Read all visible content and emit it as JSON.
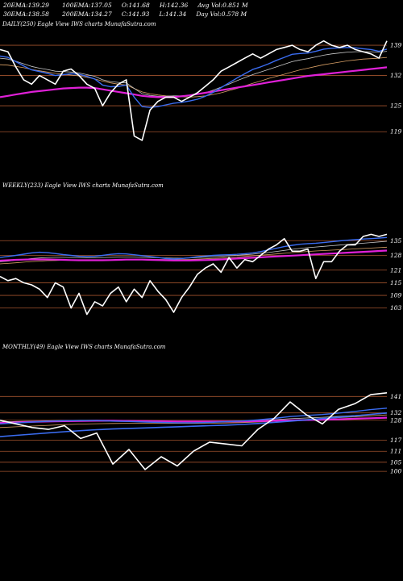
{
  "header": {
    "row1": [
      {
        "label": "20EMA:",
        "value": "139.29"
      },
      {
        "label": "100EMA:",
        "value": "137.05"
      },
      {
        "label": "O:",
        "value": "141.68"
      },
      {
        "label": "H:",
        "value": "142.36"
      },
      {
        "label": "Avg Vol:",
        "value": "0.851 M"
      }
    ],
    "row2": [
      {
        "label": "30EMA:",
        "value": "138.58"
      },
      {
        "label": "200EMA:",
        "value": "134.27"
      },
      {
        "label": "C:",
        "value": "141.93"
      },
      {
        "label": "L:",
        "value": "141.34"
      },
      {
        "label": "Day Vol:",
        "value": "0.578 M"
      }
    ]
  },
  "colors": {
    "price": "#ffffff",
    "grid": "#a0522d",
    "ema_fast": "#3a6cf0",
    "ema_slow": "#e020d8",
    "ema_mid": "#c8c8c8",
    "ema_other": "#d9a066"
  },
  "chart_data": [
    {
      "type": "line",
      "panel": "daily",
      "label": "DAILY(250) Eagle  View  IWS charts MunafaSutra.com",
      "yticks": [
        139,
        132,
        125,
        119
      ],
      "ylim": [
        114,
        142
      ],
      "x": [
        0,
        5,
        10,
        15,
        20,
        25,
        30,
        35,
        40,
        45,
        50,
        55,
        60,
        65,
        70,
        75,
        80,
        85,
        90,
        95,
        100,
        105,
        110,
        115,
        120,
        125,
        130,
        135,
        140,
        145,
        150,
        155,
        160,
        165,
        170,
        175,
        180,
        185,
        190,
        195,
        200,
        205,
        210,
        215,
        220,
        225,
        230,
        235,
        240,
        245
      ],
      "series": [
        {
          "role": "price",
          "values": [
            138,
            137.5,
            134,
            131,
            130,
            132,
            131,
            130,
            133,
            133.5,
            132,
            130,
            129,
            125,
            128,
            130,
            131,
            118,
            117,
            124,
            126,
            127,
            127,
            126,
            127,
            128,
            129.5,
            131,
            133,
            134,
            135,
            136,
            137,
            136,
            137,
            138,
            138.5,
            139,
            138,
            137.5,
            139,
            140,
            139,
            138.5,
            139,
            138,
            137.5,
            137,
            136,
            140
          ]
        },
        {
          "role": "ema_fast",
          "values": [
            136.5,
            136.2,
            135.2,
            134.2,
            133.3,
            132.9,
            132.5,
            132,
            132.2,
            132.4,
            132.3,
            131.8,
            131.2,
            129.8,
            129.4,
            129.5,
            129.8,
            127,
            124.8,
            124.6,
            124.8,
            125.2,
            125.6,
            125.8,
            126.1,
            126.5,
            127.2,
            128.1,
            129.2,
            130.3,
            131.4,
            132.4,
            133.4,
            134,
            134.7,
            135.5,
            136.2,
            136.9,
            137.1,
            137.2,
            137.6,
            138.1,
            138.3,
            138.4,
            138.5,
            138.4,
            138.2,
            138,
            137.6,
            138.1
          ]
        },
        {
          "role": "ema_mid",
          "values": [
            136,
            135.8,
            135.3,
            134.7,
            134.1,
            133.7,
            133.4,
            133,
            132.9,
            132.8,
            132.6,
            132.2,
            131.8,
            131,
            130.6,
            130.4,
            130.3,
            129,
            127.8,
            127.4,
            127.2,
            127.2,
            127.3,
            127.3,
            127.4,
            127.6,
            128,
            128.6,
            129.3,
            130,
            130.8,
            131.5,
            132.2,
            132.8,
            133.4,
            134,
            134.6,
            135.2,
            135.6,
            135.9,
            136.3,
            136.7,
            137,
            137.2,
            137.4,
            137.5,
            137.5,
            137.5,
            137.4,
            137.6
          ]
        },
        {
          "role": "ema_other",
          "values": [
            134.5,
            134.4,
            134.1,
            133.8,
            133.4,
            133.1,
            132.8,
            132.5,
            132.3,
            132.1,
            131.9,
            131.6,
            131.2,
            130.7,
            130.3,
            130,
            129.8,
            129,
            128.2,
            127.8,
            127.5,
            127.3,
            127.2,
            127.1,
            127,
            127.1,
            127.3,
            127.6,
            128,
            128.5,
            129,
            129.6,
            130.2,
            130.7,
            131.3,
            131.8,
            132.3,
            132.8,
            133.3,
            133.7,
            134.1,
            134.5,
            134.8,
            135.1,
            135.4,
            135.6,
            135.8,
            135.9,
            136,
            136.2
          ]
        },
        {
          "role": "ema_slow",
          "values": [
            127,
            127.3,
            127.6,
            127.9,
            128.2,
            128.4,
            128.6,
            128.8,
            129,
            129.1,
            129.2,
            129.2,
            129.1,
            128.8,
            128.5,
            128.2,
            127.9,
            127.6,
            127.3,
            127.1,
            127,
            127,
            127,
            127.2,
            127.4,
            127.7,
            128,
            128.3,
            128.6,
            128.9,
            129.2,
            129.5,
            129.8,
            130.1,
            130.4,
            130.7,
            131,
            131.3,
            131.6,
            131.9,
            132.1,
            132.3,
            132.5,
            132.7,
            132.9,
            133.1,
            133.3,
            133.5,
            133.7,
            133.9
          ]
        }
      ]
    },
    {
      "type": "line",
      "panel": "weekly",
      "label": "WEEKLY(233) Eagle  View  IWS charts MunafaSutra.com",
      "yticks": [
        135,
        128,
        121,
        115,
        109,
        103
      ],
      "ylim": [
        96,
        142
      ],
      "x": [
        0,
        5,
        10,
        15,
        20,
        25,
        30,
        35,
        40,
        45,
        50,
        55,
        60,
        65,
        70,
        75,
        80,
        85,
        90,
        95,
        100,
        105,
        110,
        115,
        120,
        125,
        130,
        135,
        140,
        145,
        150,
        155,
        160,
        165,
        170,
        175,
        180,
        185,
        190,
        195,
        200,
        205,
        210,
        215,
        220,
        225,
        230,
        235,
        240,
        245
      ],
      "series": [
        {
          "role": "price",
          "values": [
            118,
            116,
            117,
            115,
            114,
            112,
            108,
            115,
            113,
            103,
            110,
            100,
            106,
            104,
            110,
            113,
            106,
            112,
            108,
            116,
            111,
            107,
            101,
            108,
            113,
            119,
            122,
            124,
            120,
            127,
            122,
            126,
            125,
            128,
            131,
            133,
            136,
            130,
            130,
            131,
            117,
            125,
            125,
            130,
            133,
            133,
            137,
            138,
            137,
            138
          ]
        },
        {
          "role": "ema_fast",
          "values": [
            127,
            127.5,
            128,
            128.6,
            129.2,
            129.5,
            129.3,
            128.9,
            128.4,
            128,
            127.6,
            127.5,
            127.6,
            128,
            128.5,
            128.8,
            128.7,
            128.3,
            127.9,
            127.5,
            127,
            126.5,
            126.3,
            126.5,
            126.9,
            127.4,
            127.7,
            128,
            128.2,
            128.3,
            128.5,
            128.8,
            129.2,
            129.8,
            130.6,
            131.4,
            132.2,
            132.8,
            133.3,
            133.6,
            133.8,
            134.1,
            134.5,
            134.9,
            135.2,
            135.5,
            135.8,
            136,
            136.2,
            136.5
          ]
        },
        {
          "role": "ema_mid",
          "values": [
            125,
            125.3,
            125.7,
            126.1,
            126.5,
            126.8,
            127,
            127.1,
            127.1,
            127,
            127,
            126.9,
            126.9,
            127,
            127.1,
            127.2,
            127.2,
            127.2,
            127.1,
            127,
            126.9,
            126.8,
            126.7,
            126.7,
            126.8,
            127,
            127.2,
            127.4,
            127.6,
            127.8,
            128,
            128.3,
            128.6,
            129,
            129.4,
            129.9,
            130.4,
            130.9,
            131.3,
            131.7,
            132,
            132.3,
            132.6,
            132.9,
            133.2,
            133.5,
            133.8,
            134.1,
            134.4,
            134.7
          ]
        },
        {
          "role": "ema_other",
          "values": [
            124,
            124.2,
            124.5,
            124.8,
            125.1,
            125.3,
            125.5,
            125.6,
            125.7,
            125.7,
            125.7,
            125.7,
            125.7,
            125.8,
            125.9,
            126,
            126.1,
            126.1,
            126.1,
            126.1,
            126.1,
            126,
            126,
            126,
            126.1,
            126.2,
            126.4,
            126.6,
            126.8,
            127,
            127.2,
            127.5,
            127.8,
            128.1,
            128.4,
            128.7,
            129,
            129.3,
            129.6,
            129.9,
            130.1,
            130.3,
            130.5,
            130.7,
            130.9,
            131.1,
            131.3,
            131.5,
            131.7,
            131.9
          ]
        },
        {
          "role": "ema_slow",
          "values": [
            125.5,
            125.7,
            125.9,
            126,
            126.1,
            126.1,
            126.1,
            126,
            125.9,
            125.8,
            125.7,
            125.7,
            125.7,
            125.7,
            125.8,
            125.9,
            126,
            126,
            126,
            125.9,
            125.8,
            125.7,
            125.6,
            125.6,
            125.6,
            125.7,
            125.8,
            125.9,
            126.1,
            126.3,
            126.5,
            126.7,
            126.9,
            127.1,
            127.3,
            127.5,
            127.7,
            127.9,
            128.1,
            128.3,
            128.5,
            128.7,
            128.9,
            129.1,
            129.3,
            129.5,
            129.7,
            129.9,
            130.1,
            130.3
          ]
        }
      ]
    },
    {
      "type": "line",
      "panel": "monthly",
      "label": "MONTHLY(49) Eagle  View  IWS charts MunafaSutra.com",
      "yticks": [
        141,
        132,
        128,
        117,
        111,
        105,
        100
      ],
      "ylim": [
        93,
        146
      ],
      "x": [
        0,
        10,
        20,
        30,
        40,
        50,
        60,
        70,
        80,
        90,
        100,
        110,
        120,
        130,
        140,
        150,
        160,
        170,
        180,
        190,
        200,
        210,
        220,
        230,
        240
      ],
      "series": [
        {
          "role": "price",
          "values": [
            128,
            126,
            124,
            123,
            125,
            118,
            121,
            104,
            112,
            101,
            108,
            103,
            111,
            116,
            115,
            114,
            123,
            129,
            138,
            131,
            126,
            134,
            137,
            142,
            143
          ]
        },
        {
          "role": "ema_fast",
          "values": [
            126,
            126.5,
            127,
            127.4,
            127.7,
            127.8,
            127.8,
            127.5,
            127.3,
            127,
            126.8,
            126.6,
            126.6,
            126.8,
            127.2,
            127.6,
            128.2,
            129,
            130,
            130.6,
            131.1,
            131.9,
            132.8,
            133.8,
            134.6
          ]
        },
        {
          "role": "ema_mid",
          "values": [
            127,
            127.3,
            127.5,
            127.7,
            127.9,
            128,
            128,
            127.9,
            127.8,
            127.6,
            127.5,
            127.4,
            127.3,
            127.3,
            127.4,
            127.6,
            127.9,
            128.3,
            128.8,
            129.2,
            129.6,
            130.1,
            130.6,
            131.2,
            131.8
          ]
        },
        {
          "role": "ema_other",
          "values": [
            124,
            124.4,
            124.8,
            125.2,
            125.6,
            125.9,
            126.1,
            126.2,
            126.3,
            126.3,
            126.3,
            126.3,
            126.3,
            126.4,
            126.5,
            126.7,
            127,
            127.4,
            127.9,
            128.4,
            128.9,
            129.4,
            129.9,
            130.4,
            130.9
          ]
        },
        {
          "role": "ema_slow",
          "values": [
            126.5,
            126.8,
            127.1,
            127.3,
            127.5,
            127.6,
            127.7,
            127.7,
            127.6,
            127.5,
            127.4,
            127.3,
            127.3,
            127.3,
            127.3,
            127.4,
            127.5,
            127.7,
            127.9,
            128.1,
            128.3,
            128.5,
            128.8,
            129.1,
            129.4
          ]
        },
        {
          "role": "ema_fast_long",
          "values": [
            119,
            119.7,
            120.4,
            121.1,
            121.7,
            122.3,
            122.8,
            123.2,
            123.5,
            123.8,
            124.1,
            124.4,
            124.7,
            125,
            125.3,
            125.7,
            126.2,
            126.8,
            127.5,
            128.2,
            128.9,
            129.6,
            130.4,
            131.2,
            132
          ]
        }
      ]
    }
  ]
}
